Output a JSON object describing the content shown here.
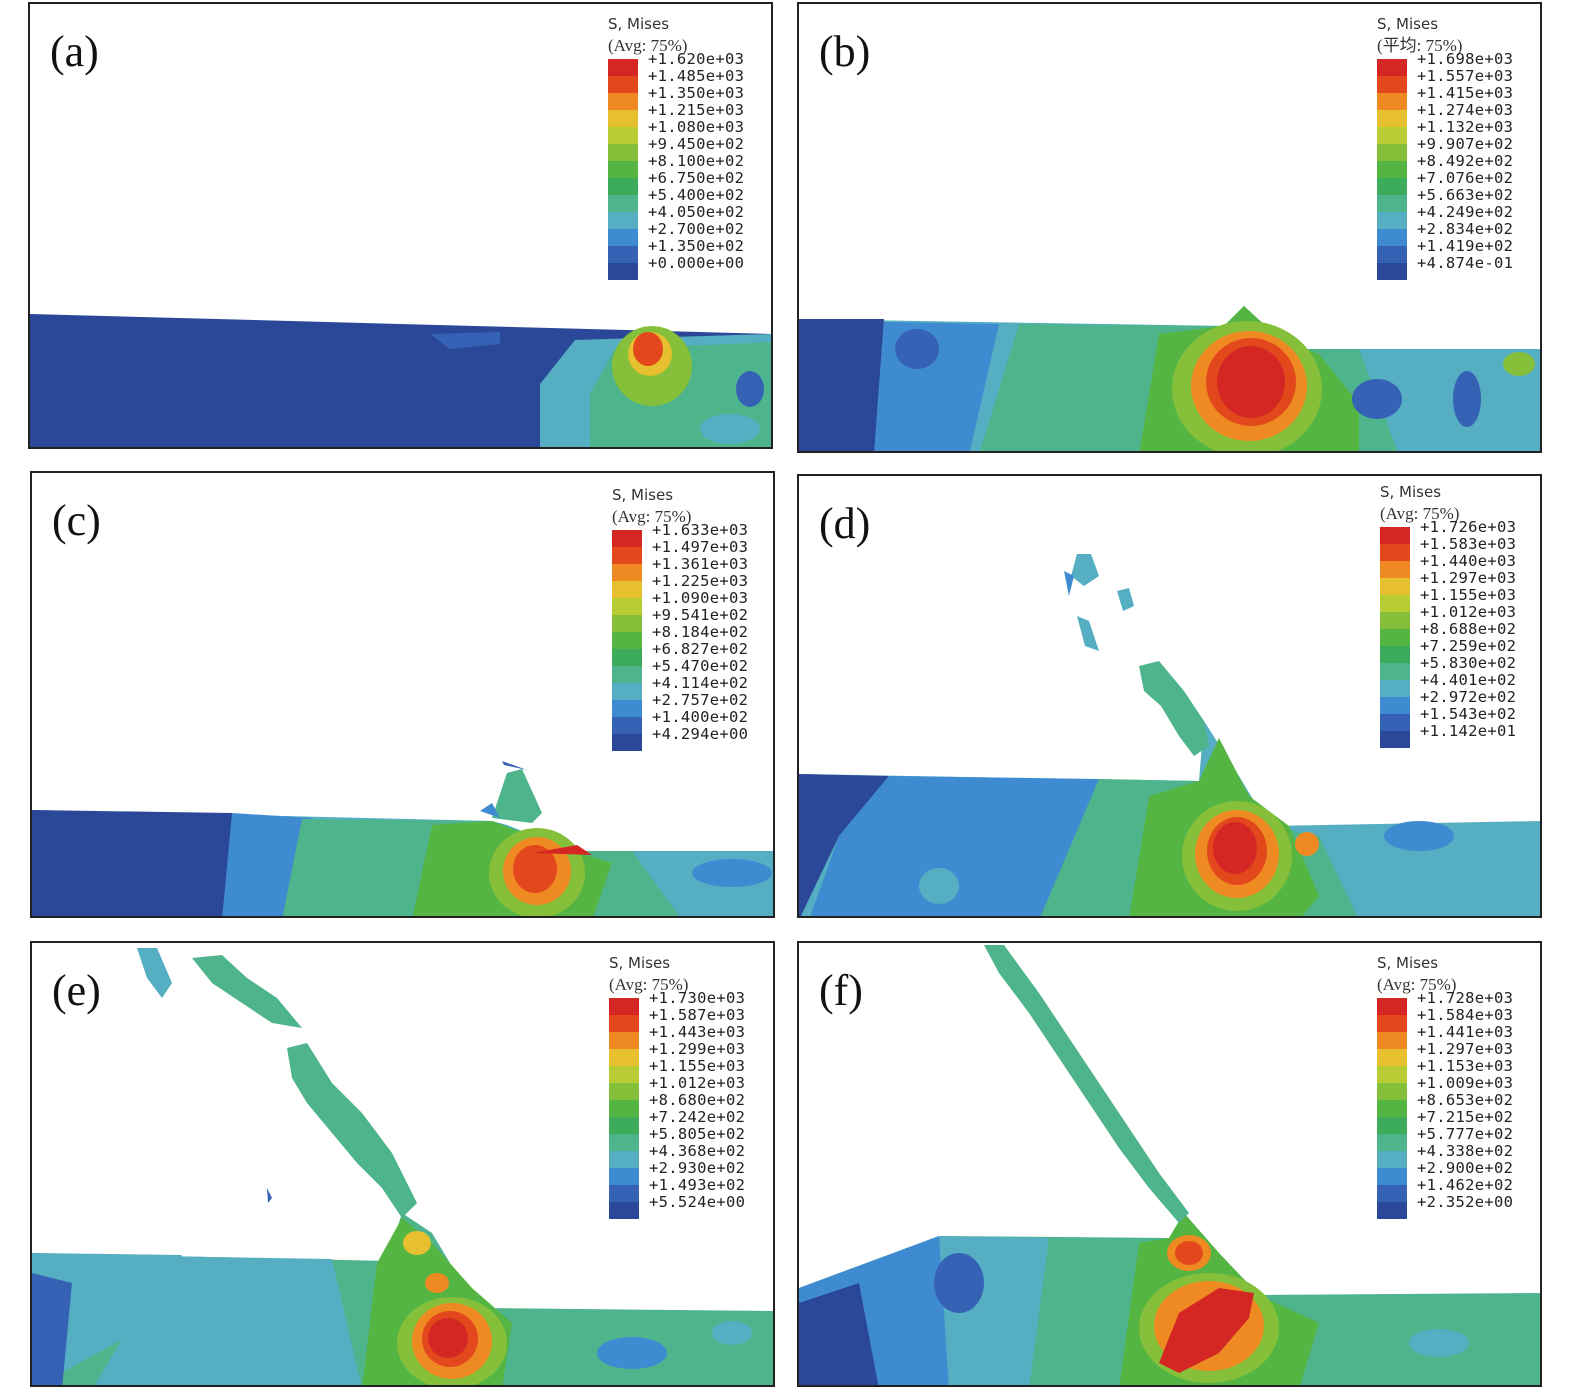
{
  "colormap": [
    "#d42724",
    "#e2481c",
    "#ee8a21",
    "#e6c02f",
    "#b7cd33",
    "#86c03a",
    "#55b543",
    "#3cac5a",
    "#4eb48c",
    "#55aec2",
    "#3f8bd1",
    "#3662b5",
    "#2b4898"
  ],
  "panels": [
    {
      "label": "(a)",
      "legend": {
        "title": "S, Mises",
        "sub": "(Avg: 75%)",
        "values": [
          "+1.620e+03",
          "+1.485e+03",
          "+1.350e+03",
          "+1.215e+03",
          "+1.080e+03",
          "+9.450e+02",
          "+8.100e+02",
          "+6.750e+02",
          "+5.400e+02",
          "+4.050e+02",
          "+2.700e+02",
          "+1.350e+02",
          "+0.000e+00"
        ]
      }
    },
    {
      "label": "(b)",
      "legend": {
        "title": "S, Mises",
        "sub": "(平均: 75%)",
        "values": [
          "+1.698e+03",
          "+1.557e+03",
          "+1.415e+03",
          "+1.274e+03",
          "+1.132e+03",
          "+9.907e+02",
          "+8.492e+02",
          "+7.076e+02",
          "+5.663e+02",
          "+4.249e+02",
          "+2.834e+02",
          "+1.419e+02",
          "+4.874e-01"
        ]
      }
    },
    {
      "label": "(c)",
      "legend": {
        "title": "S, Mises",
        "sub": "(Avg: 75%)",
        "values": [
          "+1.633e+03",
          "+1.497e+03",
          "+1.361e+03",
          "+1.225e+03",
          "+1.090e+03",
          "+9.541e+02",
          "+8.184e+02",
          "+6.827e+02",
          "+5.470e+02",
          "+4.114e+02",
          "+2.757e+02",
          "+1.400e+02",
          "+4.294e+00"
        ]
      }
    },
    {
      "label": "(d)",
      "legend": {
        "title": "S, Mises",
        "sub": "(Avg: 75%)",
        "values": [
          "+1.726e+03",
          "+1.583e+03",
          "+1.440e+03",
          "+1.297e+03",
          "+1.155e+03",
          "+1.012e+03",
          "+8.688e+02",
          "+7.259e+02",
          "+5.830e+02",
          "+4.401e+02",
          "+2.972e+02",
          "+1.543e+02",
          "+1.142e+01"
        ]
      }
    },
    {
      "label": "(e)",
      "legend": {
        "title": "S, Mises",
        "sub": "(Avg: 75%)",
        "values": [
          "+1.730e+03",
          "+1.587e+03",
          "+1.443e+03",
          "+1.299e+03",
          "+1.155e+03",
          "+1.012e+03",
          "+8.680e+02",
          "+7.242e+02",
          "+5.805e+02",
          "+4.368e+02",
          "+2.930e+02",
          "+1.493e+02",
          "+5.524e+00"
        ]
      }
    },
    {
      "label": "(f)",
      "legend": {
        "title": "S, Mises",
        "sub": "(Avg: 75%)",
        "values": [
          "+1.728e+03",
          "+1.584e+03",
          "+1.441e+03",
          "+1.297e+03",
          "+1.153e+03",
          "+1.009e+03",
          "+8.653e+02",
          "+7.215e+02",
          "+5.777e+02",
          "+4.338e+02",
          "+2.900e+02",
          "+1.462e+02",
          "+2.352e+00"
        ]
      }
    }
  ]
}
